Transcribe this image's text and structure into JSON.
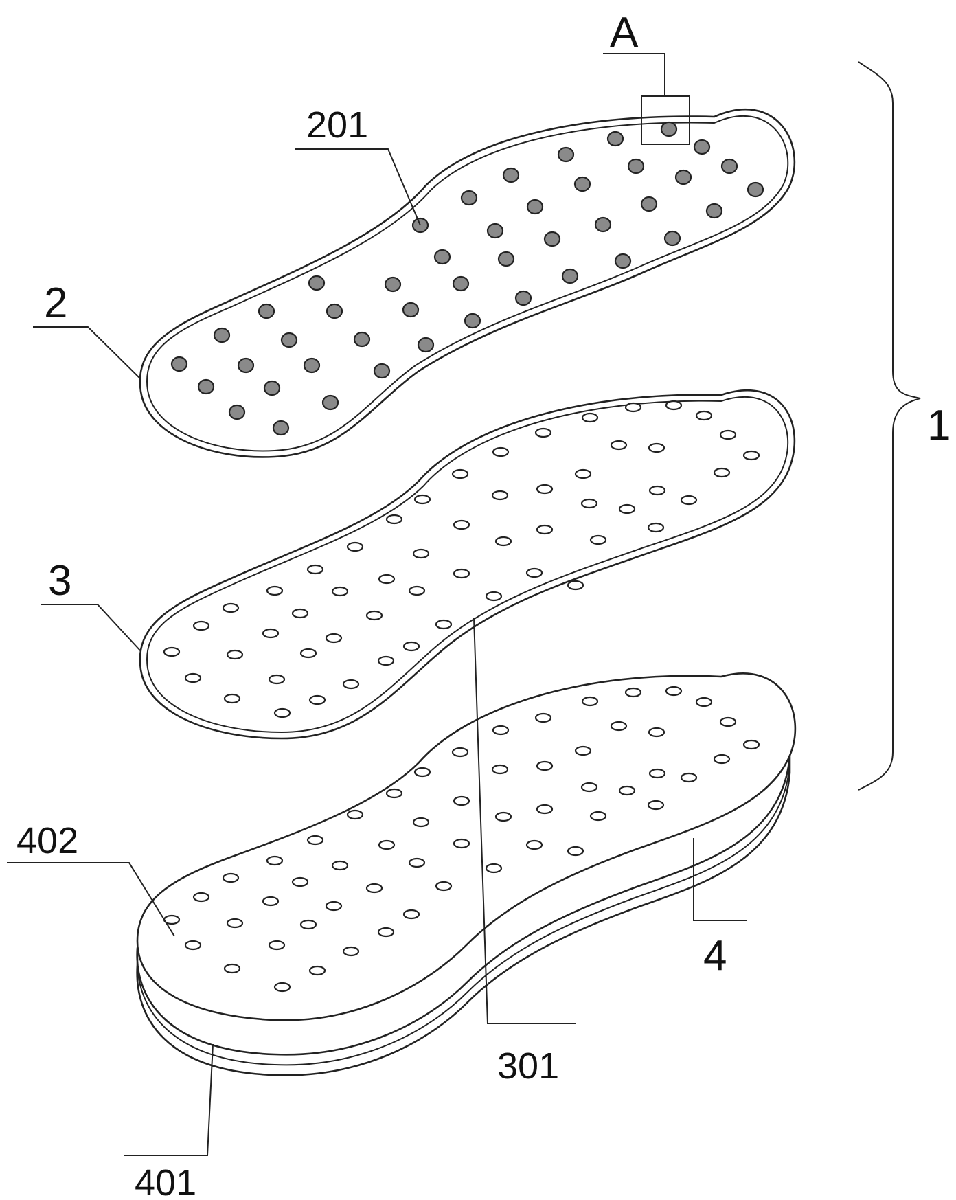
{
  "labels": {
    "A": "A",
    "n201": "201",
    "n2": "2",
    "n3": "3",
    "n1": "1",
    "n402": "402",
    "n4": "4",
    "n301": "301",
    "n401": "401"
  },
  "colors": {
    "line": "#222222",
    "vent_fill": "#8a8a8a",
    "background": "#ffffff"
  }
}
